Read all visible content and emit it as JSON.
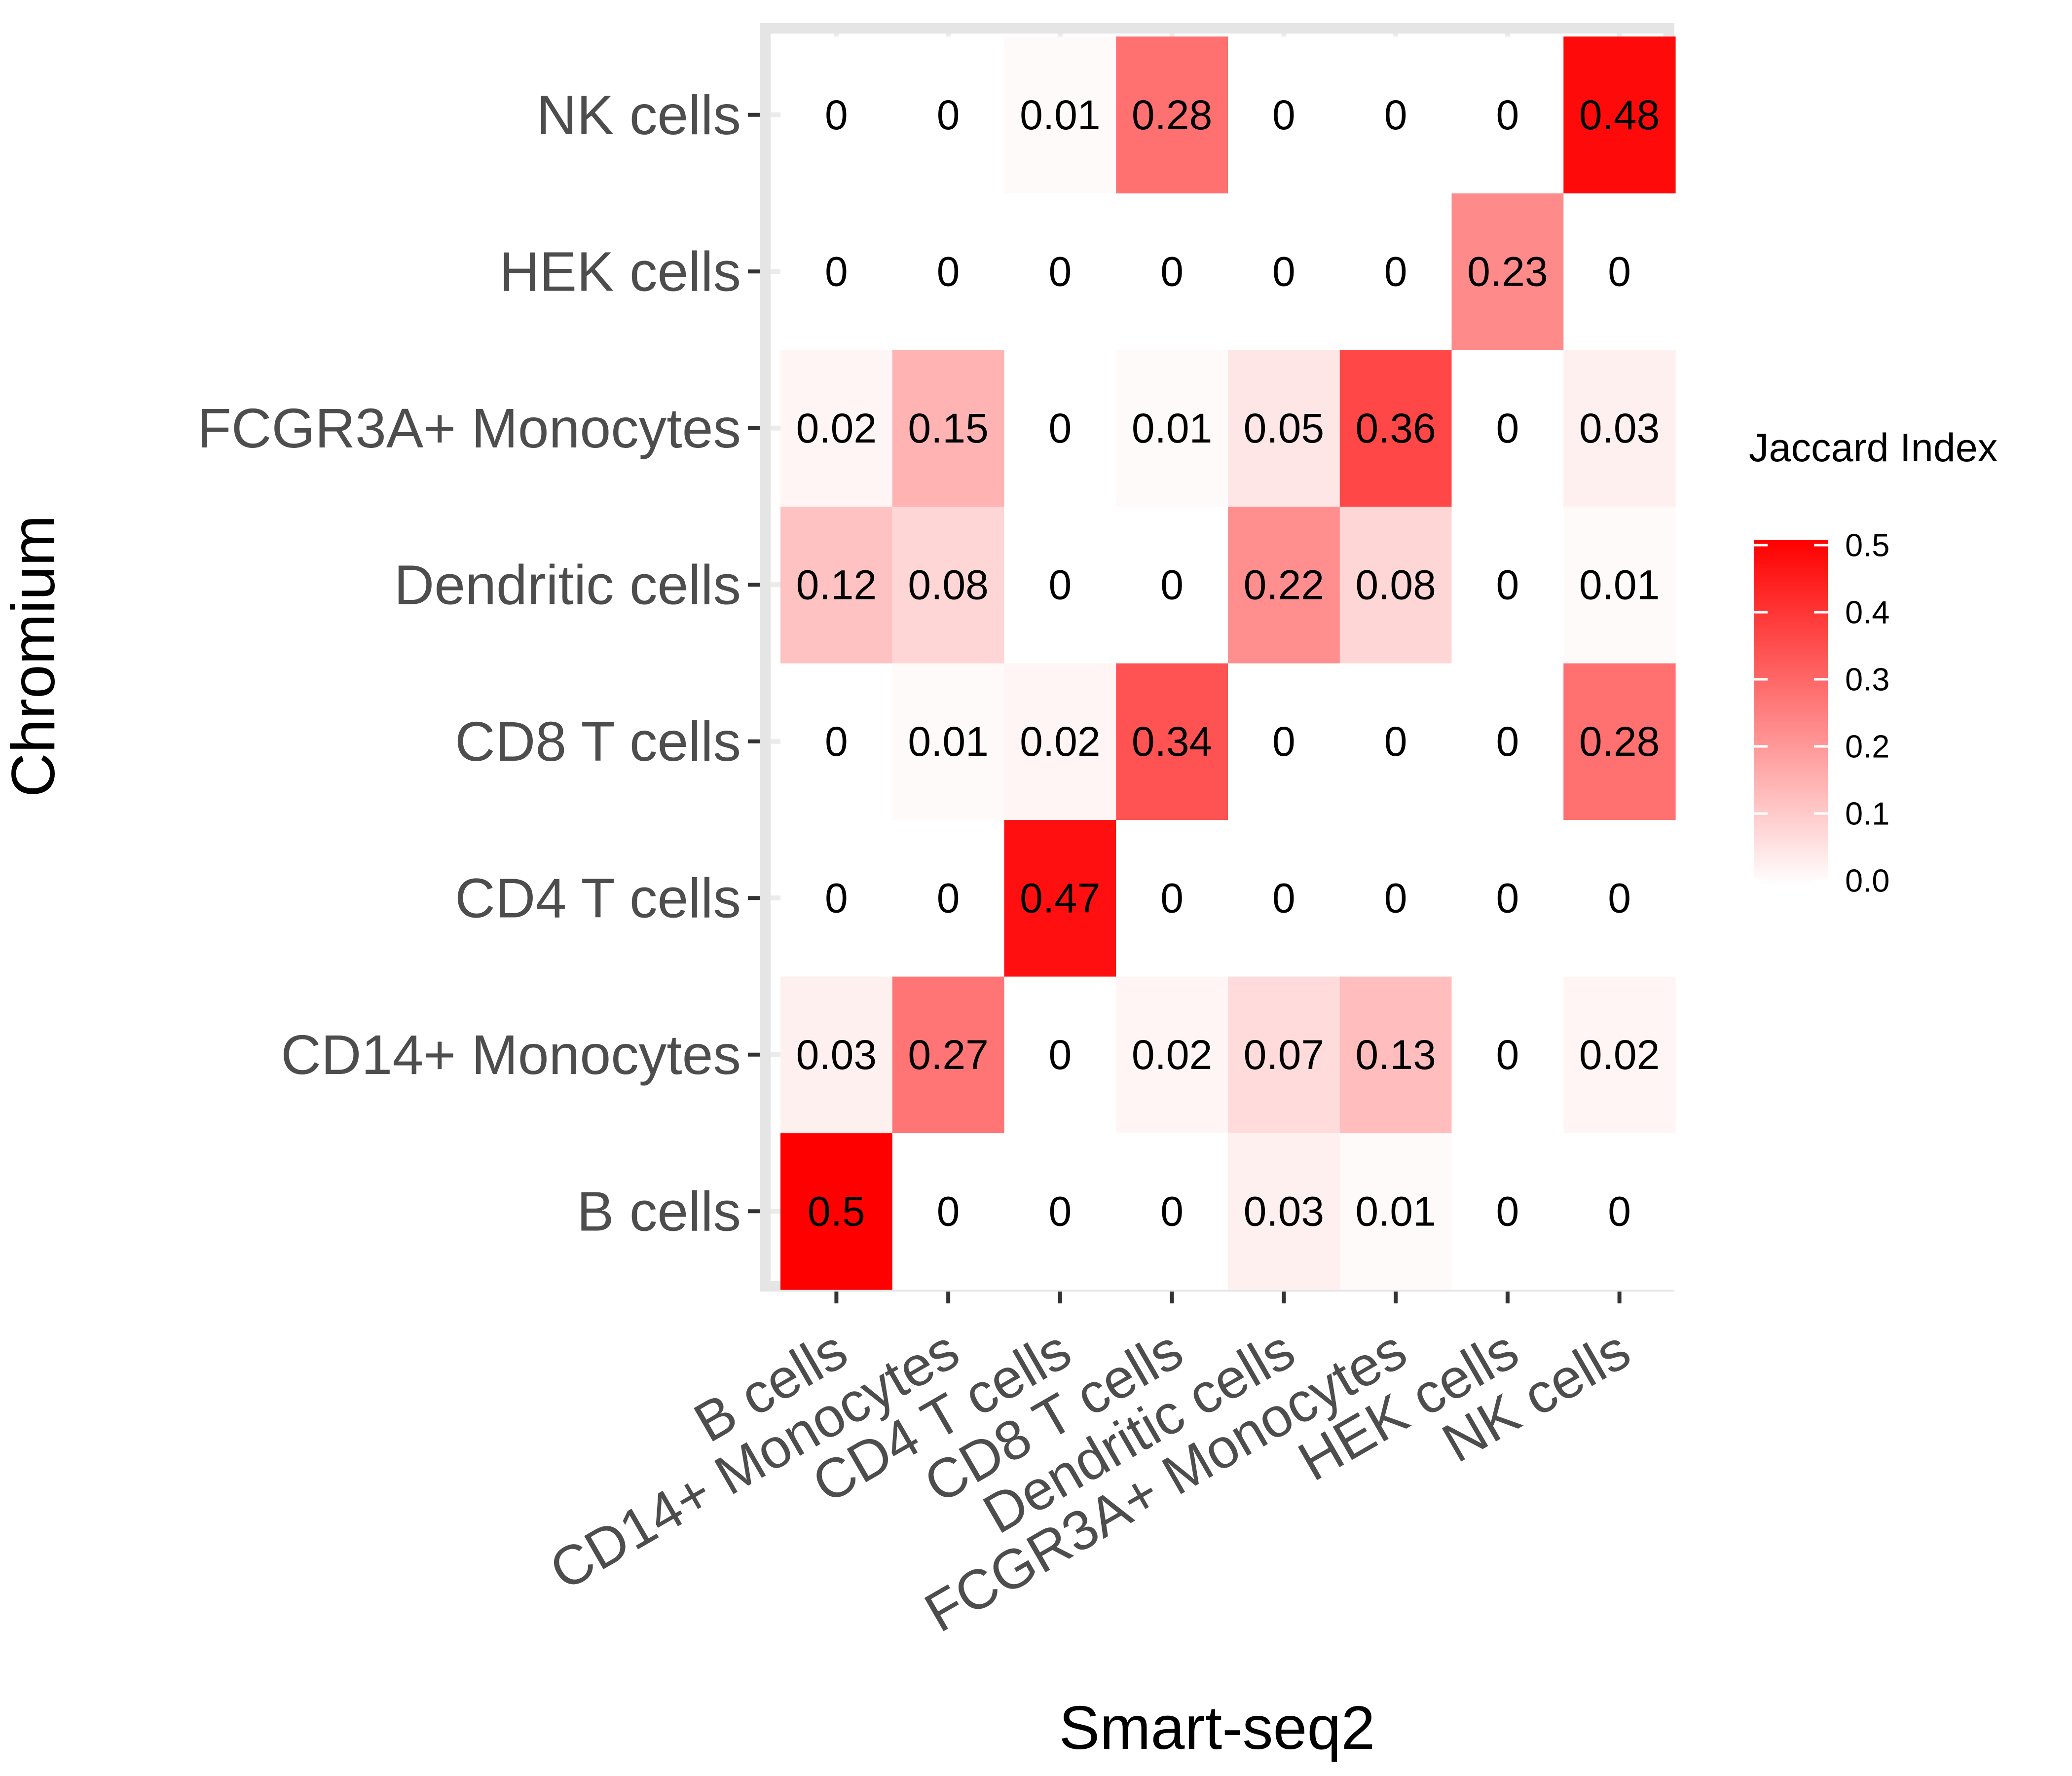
{
  "chart_data": {
    "type": "heatmap",
    "xlabel": "Smart-seq2",
    "ylabel": "Chromium",
    "x_categories": [
      "B cells",
      "CD14+ Monocytes",
      "CD4 T cells",
      "CD8 T cells",
      "Dendritic cells",
      "FCGR3A+ Monocytes",
      "HEK cells",
      "NK cells"
    ],
    "y_categories": [
      "B cells",
      "CD14+ Monocytes",
      "CD4 T cells",
      "CD8 T cells",
      "Dendritic cells",
      "FCGR3A+ Monocytes",
      "HEK cells",
      "NK cells"
    ],
    "values": [
      [
        0.5,
        0,
        0,
        0,
        0.03,
        0.01,
        0,
        0
      ],
      [
        0.03,
        0.27,
        0,
        0.02,
        0.07,
        0.13,
        0,
        0.02
      ],
      [
        0,
        0,
        0.47,
        0,
        0,
        0,
        0,
        0
      ],
      [
        0,
        0.01,
        0.02,
        0.34,
        0,
        0,
        0,
        0.28
      ],
      [
        0.12,
        0.08,
        0,
        0,
        0.22,
        0.08,
        0,
        0.01
      ],
      [
        0.02,
        0.15,
        0,
        0.01,
        0.05,
        0.36,
        0,
        0.03
      ],
      [
        0,
        0,
        0,
        0,
        0,
        0,
        0.23,
        0
      ],
      [
        0,
        0,
        0.01,
        0.28,
        0,
        0,
        0,
        0.48
      ]
    ],
    "value_labels": [
      [
        "0.5",
        "0",
        "0",
        "0",
        "0.03",
        "0.01",
        "0",
        "0"
      ],
      [
        "0.03",
        "0.27",
        "0",
        "0.02",
        "0.07",
        "0.13",
        "0",
        "0.02"
      ],
      [
        "0",
        "0",
        "0.47",
        "0",
        "0",
        "0",
        "0",
        "0"
      ],
      [
        "0",
        "0.01",
        "0.02",
        "0.34",
        "0",
        "0",
        "0",
        "0.28"
      ],
      [
        "0.12",
        "0.08",
        "0",
        "0",
        "0.22",
        "0.08",
        "0",
        "0.01"
      ],
      [
        "0.02",
        "0.15",
        "0",
        "0.01",
        "0.05",
        "0.36",
        "0",
        "0.03"
      ],
      [
        "0",
        "0",
        "0",
        "0",
        "0",
        "0",
        "0.23",
        "0"
      ],
      [
        "0",
        "0",
        "0.01",
        "0.28",
        "0",
        "0",
        "0",
        "0.48"
      ]
    ],
    "legend": {
      "title": "Jaccard Index",
      "ticks": [
        0.0,
        0.1,
        0.2,
        0.3,
        0.4,
        0.5
      ],
      "tick_labels": [
        "0.0",
        "0.1",
        "0.2",
        "0.3",
        "0.4",
        "0.5"
      ],
      "range": [
        0,
        0.5
      ],
      "low_color": "#ffffff",
      "high_color": "#ff0000",
      "placement": "right"
    },
    "panel_background": "#ffffff",
    "panel_border_color": "#e5e5e5",
    "grid": true
  }
}
